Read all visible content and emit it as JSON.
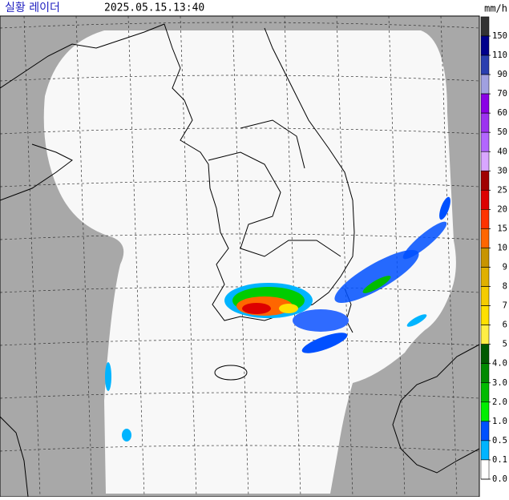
{
  "header": {
    "title": "실황 레이더",
    "timestamp": "2025.05.15.13:40"
  },
  "legend": {
    "unit": "mm/h",
    "items": [
      {
        "label": "150",
        "color": "#333333"
      },
      {
        "label": "110",
        "color": "#00008c"
      },
      {
        "label": "90",
        "color": "#2a3fb0"
      },
      {
        "label": "70",
        "color": "#a0a0e0"
      },
      {
        "label": "60",
        "color": "#8a00e6"
      },
      {
        "label": "50",
        "color": "#9c33f0"
      },
      {
        "label": "40",
        "color": "#b366ff"
      },
      {
        "label": "30",
        "color": "#d9a6ff"
      },
      {
        "label": "25",
        "color": "#a00000"
      },
      {
        "label": "20",
        "color": "#dd0000"
      },
      {
        "label": "15",
        "color": "#ff3300"
      },
      {
        "label": "10",
        "color": "#ff6600"
      },
      {
        "label": "9",
        "color": "#c89400"
      },
      {
        "label": "8",
        "color": "#e0b000"
      },
      {
        "label": "7",
        "color": "#f5cc00"
      },
      {
        "label": "6",
        "color": "#ffe000"
      },
      {
        "label": "5",
        "color": "#ffee44"
      },
      {
        "label": "4.0",
        "color": "#005a00"
      },
      {
        "label": "3.0",
        "color": "#008a00"
      },
      {
        "label": "2.0",
        "color": "#00bb00"
      },
      {
        "label": "1.0",
        "color": "#00ee00"
      },
      {
        "label": "0.5",
        "color": "#0050ff"
      },
      {
        "label": "0.1",
        "color": "#00b4ff"
      },
      {
        "label": "0.0",
        "color": "#ffffff"
      }
    ]
  }
}
